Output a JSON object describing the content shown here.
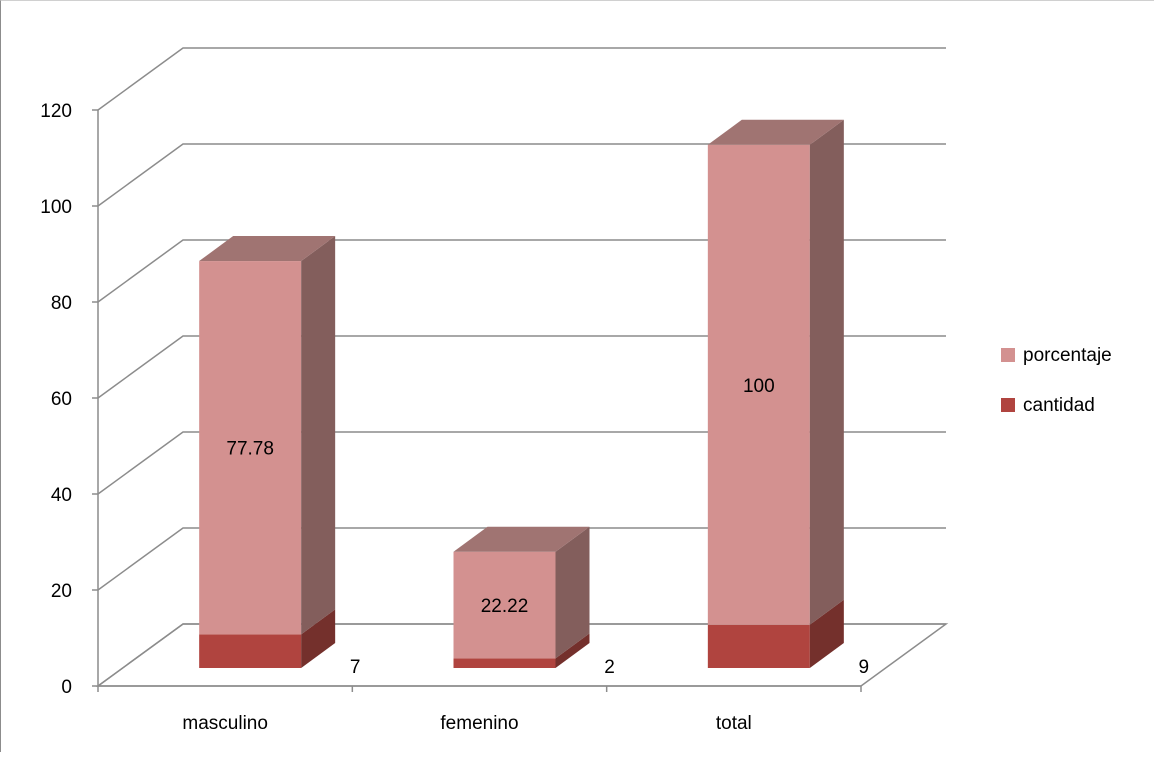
{
  "chart_data": {
    "type": "bar",
    "stacked": true,
    "three_d": true,
    "categories": [
      "masculino",
      "femenino",
      "total"
    ],
    "series": [
      {
        "name": "cantidad",
        "values": [
          7,
          2,
          9
        ],
        "color": "#b0443f",
        "side_color": "#74302c",
        "top_color": "#8a3835"
      },
      {
        "name": "porcentaje",
        "values": [
          77.78,
          22.22,
          100
        ],
        "color": "#d39190",
        "side_color": "#835e5c",
        "top_color": "#a07472"
      }
    ],
    "data_labels": {
      "cantidad": [
        "7",
        "2",
        "9"
      ],
      "porcentaje": [
        "77.78",
        "22.22",
        "100"
      ]
    },
    "y_ticks": [
      "0",
      "20",
      "40",
      "60",
      "80",
      "100",
      "120"
    ],
    "ylim": [
      0,
      120
    ],
    "grid": true,
    "legend_position": "right"
  }
}
